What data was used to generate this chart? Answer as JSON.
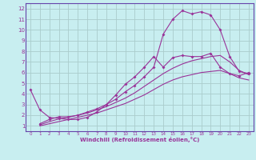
{
  "xlabel": "Windchill (Refroidissement éolien,°C)",
  "bg_color": "#c8eef0",
  "grid_color": "#aacccc",
  "line_color": "#993399",
  "spine_color": "#6644aa",
  "xlim": [
    -0.5,
    23.5
  ],
  "ylim": [
    0.5,
    12.5
  ],
  "xticks": [
    0,
    1,
    2,
    3,
    4,
    5,
    6,
    7,
    8,
    9,
    10,
    11,
    12,
    13,
    14,
    15,
    16,
    17,
    18,
    19,
    20,
    21,
    22,
    23
  ],
  "yticks": [
    1,
    2,
    3,
    4,
    5,
    6,
    7,
    8,
    9,
    10,
    11,
    12
  ],
  "curve1_x": [
    0,
    1,
    2,
    3,
    4,
    5,
    6,
    7,
    8,
    9,
    10,
    11,
    12,
    13,
    14,
    15,
    16,
    17,
    18,
    19,
    20,
    21,
    22,
    23
  ],
  "curve1_y": [
    4.4,
    2.5,
    1.8,
    1.7,
    1.6,
    1.6,
    1.8,
    2.3,
    3.0,
    3.9,
    4.9,
    5.6,
    6.5,
    7.5,
    6.5,
    7.4,
    7.6,
    7.5,
    7.5,
    7.8,
    6.5,
    5.9,
    5.7,
    6.0
  ],
  "curve2_x": [
    1,
    2,
    3,
    4,
    5,
    6,
    7,
    8,
    9,
    10,
    11,
    12,
    13,
    14,
    15,
    16,
    17,
    18,
    19,
    20,
    21,
    22,
    23
  ],
  "curve2_y": [
    1.2,
    1.6,
    1.85,
    1.85,
    2.0,
    2.3,
    2.6,
    3.0,
    3.5,
    4.2,
    4.8,
    5.6,
    6.5,
    9.6,
    11.0,
    11.8,
    11.5,
    11.7,
    11.4,
    10.0,
    7.5,
    6.1,
    5.9
  ],
  "curve3_x": [
    1,
    2,
    3,
    4,
    5,
    6,
    7,
    8,
    9,
    10,
    11,
    12,
    13,
    14,
    15,
    16,
    17,
    18,
    19,
    20,
    21,
    22,
    23
  ],
  "curve3_y": [
    1.1,
    1.4,
    1.65,
    1.8,
    2.0,
    2.2,
    2.5,
    2.8,
    3.2,
    3.6,
    4.1,
    4.7,
    5.3,
    5.9,
    6.4,
    6.8,
    7.1,
    7.3,
    7.5,
    7.6,
    7.0,
    6.2,
    5.8
  ],
  "curve4_x": [
    1,
    2,
    3,
    4,
    5,
    6,
    7,
    8,
    9,
    10,
    11,
    12,
    13,
    14,
    15,
    16,
    17,
    18,
    19,
    20,
    21,
    22,
    23
  ],
  "curve4_y": [
    1.0,
    1.2,
    1.4,
    1.6,
    1.8,
    2.0,
    2.2,
    2.5,
    2.8,
    3.1,
    3.5,
    3.9,
    4.4,
    4.9,
    5.3,
    5.6,
    5.8,
    6.0,
    6.1,
    6.2,
    5.9,
    5.5,
    5.3
  ]
}
